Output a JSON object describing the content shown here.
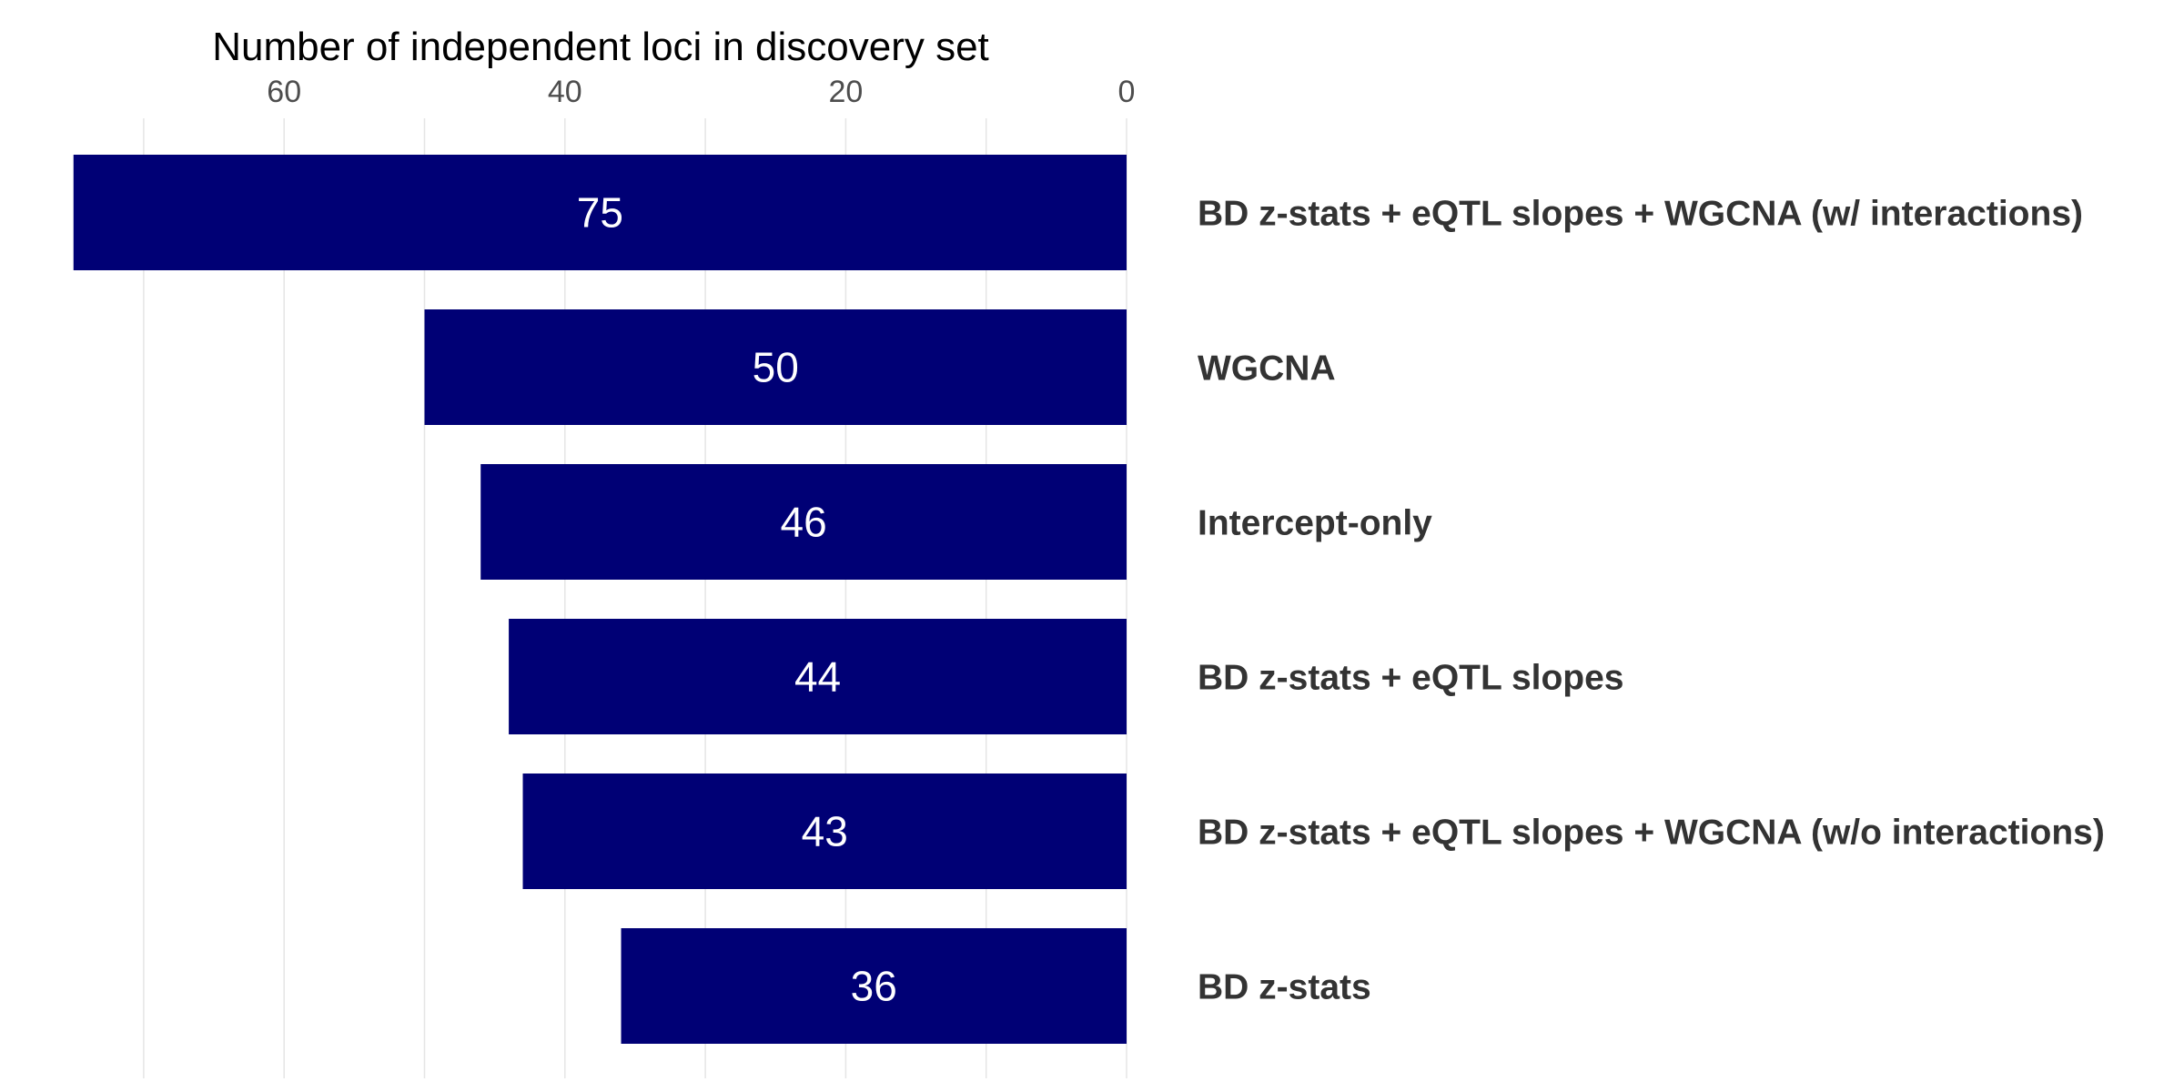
{
  "chart_data": {
    "type": "bar",
    "orientation": "horizontal",
    "x_axis_reversed": true,
    "x_axis_position": "top",
    "xlabel": "Number of independent loci in discovery set",
    "ylabel": "",
    "title": "",
    "xlim": [
      0,
      80
    ],
    "x_ticks": [
      60,
      40,
      20,
      0
    ],
    "grid": true,
    "bar_color": "#000075",
    "categories": [
      "BD z-stats + eQTL slopes + WGCNA (w/ interactions)",
      "WGCNA",
      "Intercept-only",
      "BD z-stats + eQTL slopes",
      "BD z-stats + eQTL slopes + WGCNA (w/o interactions)",
      "BD z-stats"
    ],
    "values": [
      75,
      50,
      46,
      44,
      43,
      36
    ]
  }
}
